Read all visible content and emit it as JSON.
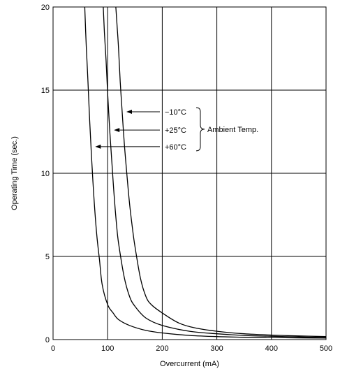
{
  "chart_data": {
    "type": "line",
    "title": "",
    "xlabel": "Overcurrent (mA)",
    "ylabel": "Operating Time (sec.)",
    "xlim": [
      0,
      500
    ],
    "ylim": [
      0,
      20
    ],
    "xticks": [
      0,
      100,
      200,
      300,
      400,
      500
    ],
    "yticks": [
      0,
      5,
      10,
      15,
      20
    ],
    "grid": true,
    "legend": "none",
    "annotation_group_label": "Ambient Temp.",
    "series": [
      {
        "name": "−10°C",
        "label_y": 13.7,
        "x": [
          115,
          117,
          120,
          123,
          126,
          130,
          135,
          140,
          145,
          150,
          160,
          170,
          180,
          200,
          230,
          260,
          300,
          350,
          400,
          450,
          500
        ],
        "y": [
          20,
          19.0,
          17.5,
          15.5,
          14.0,
          12.0,
          10.0,
          8.2,
          6.8,
          5.6,
          3.7,
          2.6,
          2.1,
          1.6,
          1.0,
          0.7,
          0.5,
          0.35,
          0.27,
          0.22,
          0.18
        ]
      },
      {
        "name": "+25°C",
        "label_y": 12.6,
        "x": [
          92,
          94,
          97,
          100,
          104,
          108,
          112,
          116,
          120,
          130,
          140,
          150,
          170,
          200,
          250,
          300,
          350,
          400,
          450,
          500
        ],
        "y": [
          20,
          18.5,
          16.8,
          14.8,
          12.5,
          10.5,
          8.6,
          7.0,
          5.8,
          3.8,
          2.6,
          2.0,
          1.3,
          0.85,
          0.5,
          0.35,
          0.25,
          0.2,
          0.16,
          0.13
        ]
      },
      {
        "name": "+60°C",
        "label_y": 11.6,
        "x": [
          58,
          61,
          64,
          67,
          70,
          73,
          76,
          80,
          85,
          90,
          100,
          110,
          120,
          140,
          170,
          200,
          250,
          300,
          350,
          400,
          450,
          500
        ],
        "y": [
          20,
          17.5,
          15.5,
          13.2,
          11.3,
          9.5,
          8.0,
          6.3,
          4.8,
          3.3,
          2.1,
          1.6,
          1.2,
          0.85,
          0.55,
          0.4,
          0.25,
          0.18,
          0.14,
          0.12,
          0.1,
          0.09
        ]
      }
    ],
    "colors": {
      "line": "#000000",
      "grid": "#000000",
      "background": "#ffffff"
    }
  }
}
